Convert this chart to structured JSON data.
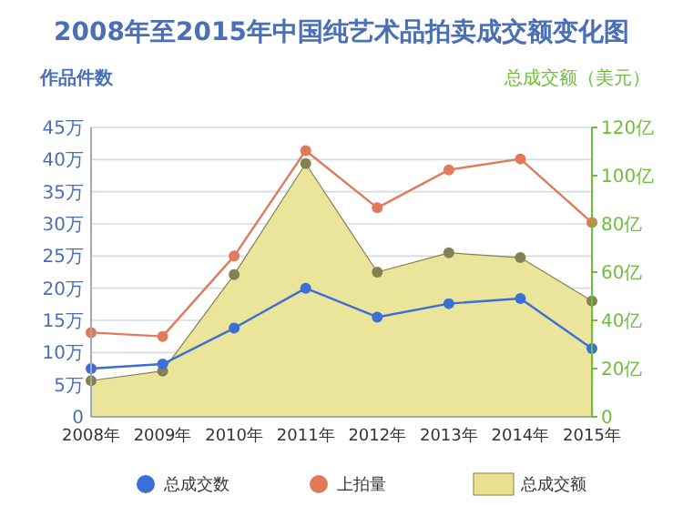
{
  "chart_data": {
    "type": "line",
    "title": "2008年至2015年中国纯艺术品拍卖成交额变化图",
    "ylabel": "作品件数",
    "y2label": "总成交额（美元）",
    "categories": [
      "2008年",
      "2009年",
      "2010年",
      "2011年",
      "2012年",
      "2013年",
      "2014年",
      "2015年"
    ],
    "series": [
      {
        "name": "总成交额",
        "type": "area",
        "axis": "y2",
        "color": "#e8e290",
        "values": [
          15,
          19,
          59,
          105,
          60,
          68,
          66,
          48
        ]
      },
      {
        "name": "总成交数",
        "type": "line",
        "color": "#3b6fd6",
        "values": [
          7.5,
          8.2,
          13.8,
          20,
          15.5,
          17.6,
          18.4,
          10.6
        ]
      },
      {
        "name": "上拍量",
        "type": "line",
        "color": "#e07a5a",
        "values": [
          13.1,
          12.5,
          25,
          41.4,
          32.5,
          38.4,
          40.1,
          30.2
        ]
      }
    ],
    "ylim": [
      0,
      45
    ],
    "yticks": [
      0,
      {
        "value": 5,
        "label": "5万"
      },
      {
        "value": 10,
        "label": "10万"
      },
      {
        "value": 15,
        "label": "15万"
      },
      {
        "value": 20,
        "label": "20万"
      },
      {
        "value": 25,
        "label": "25万"
      },
      {
        "value": 30,
        "label": "30万"
      },
      {
        "value": 35,
        "label": "35万"
      },
      {
        "value": 40,
        "label": "40万"
      },
      {
        "value": 45,
        "label": "45万"
      }
    ],
    "y2lim": [
      0,
      120
    ],
    "y2ticks": [
      0,
      {
        "value": 20,
        "label": "20亿"
      },
      {
        "value": 40,
        "label": "40亿"
      },
      {
        "value": 60,
        "label": "60亿"
      },
      {
        "value": 80,
        "label": "80亿"
      },
      {
        "value": 100,
        "label": "100亿"
      },
      {
        "value": 120,
        "label": "120亿"
      }
    ],
    "grid": "y",
    "legend": "bottom",
    "marker": "circle"
  }
}
